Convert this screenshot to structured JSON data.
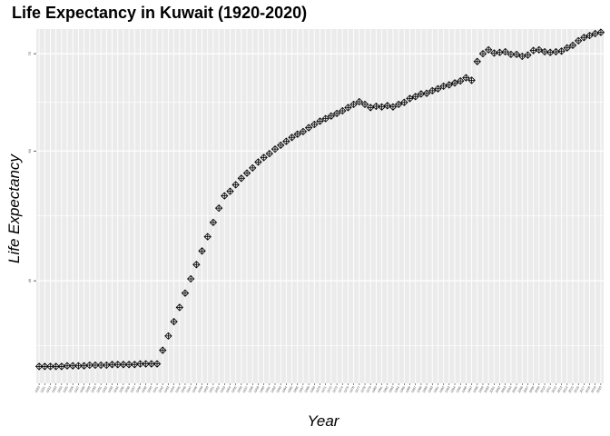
{
  "chart_data": {
    "type": "scatter",
    "title": "Life Expectancy in Kuwait (1920-2020)",
    "xlabel": "Year",
    "ylabel": "Life Expectancy",
    "x_range": [
      1920,
      2020
    ],
    "y_range": [
      24.2,
      78.8
    ],
    "y_ticks": [
      40,
      60,
      75
    ],
    "y_tick_labels": [
      "40",
      "60",
      "75"
    ],
    "marker": "diamond-with-cross",
    "panel_background": "#ebebeb",
    "grid_color": "#ffffff",
    "point_color": "#000000",
    "x": [
      1920,
      1921,
      1922,
      1923,
      1924,
      1925,
      1926,
      1927,
      1928,
      1929,
      1930,
      1931,
      1932,
      1933,
      1934,
      1935,
      1936,
      1937,
      1938,
      1939,
      1940,
      1941,
      1942,
      1943,
      1944,
      1945,
      1946,
      1947,
      1948,
      1949,
      1950,
      1951,
      1952,
      1953,
      1954,
      1955,
      1956,
      1957,
      1958,
      1959,
      1960,
      1961,
      1962,
      1963,
      1964,
      1965,
      1966,
      1967,
      1968,
      1969,
      1970,
      1971,
      1972,
      1973,
      1974,
      1975,
      1976,
      1977,
      1978,
      1979,
      1980,
      1981,
      1982,
      1983,
      1984,
      1985,
      1986,
      1987,
      1988,
      1989,
      1990,
      1991,
      1992,
      1993,
      1994,
      1995,
      1996,
      1997,
      1998,
      1999,
      2000,
      2001,
      2002,
      2003,
      2004,
      2005,
      2006,
      2007,
      2008,
      2009,
      2010,
      2011,
      2012,
      2013,
      2014,
      2015,
      2016,
      2017,
      2018,
      2019,
      2020
    ],
    "y": [
      26.8,
      26.8,
      26.8,
      26.8,
      26.8,
      26.9,
      26.9,
      26.9,
      26.9,
      27.0,
      27.0,
      27.0,
      27.0,
      27.1,
      27.1,
      27.1,
      27.1,
      27.1,
      27.2,
      27.2,
      27.2,
      27.2,
      29.3,
      31.5,
      33.7,
      35.9,
      38.1,
      40.3,
      42.5,
      44.6,
      46.8,
      49.0,
      51.2,
      53.1,
      53.8,
      54.8,
      55.8,
      56.6,
      57.4,
      58.3,
      59.0,
      59.6,
      60.3,
      60.9,
      61.5,
      62.1,
      62.6,
      63.0,
      63.6,
      64.1,
      64.6,
      65.0,
      65.4,
      65.8,
      66.2,
      66.7,
      67.2,
      67.6,
      67.2,
      66.7,
      66.9,
      66.8,
      67.0,
      66.8,
      67.2,
      67.5,
      68.1,
      68.4,
      68.8,
      68.9,
      69.3,
      69.6,
      70.0,
      70.2,
      70.5,
      70.8,
      71.3,
      70.9,
      73.8,
      75.0,
      75.6,
      75.1,
      75.2,
      75.3,
      74.9,
      74.9,
      74.6,
      74.8,
      75.5,
      75.6,
      75.3,
      75.2,
      75.3,
      75.4,
      75.9,
      76.3,
      77.0,
      77.5,
      77.8,
      78.1,
      78.3
    ]
  }
}
